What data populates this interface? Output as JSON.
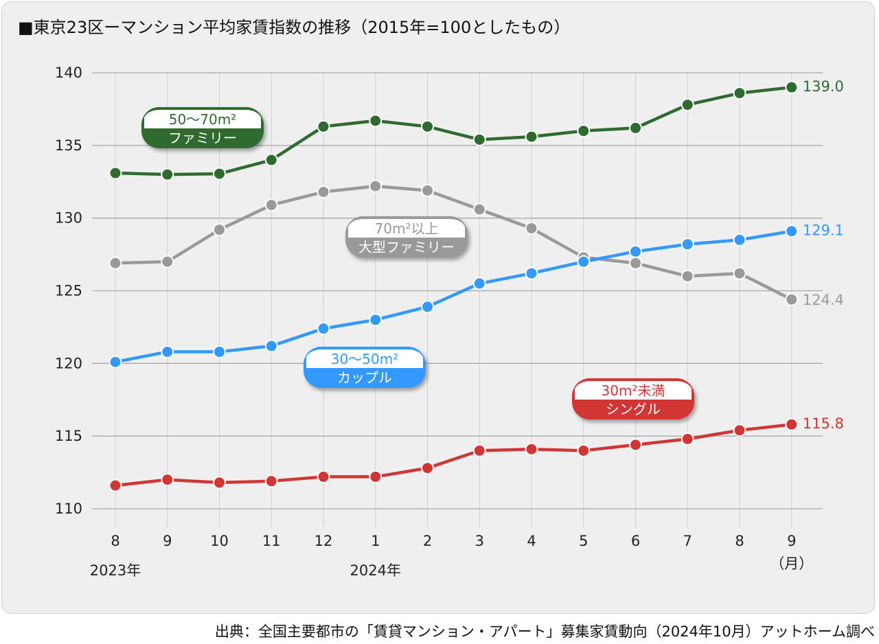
{
  "title": "■東京23区ーマンション平均家賃指数の推移（2015年=100としたもの）",
  "source": "出典：全国主要都市の「賃貸マンション・アパート」募集家賃動向（2024年10月）アットホーム調べ",
  "chart_data": {
    "type": "line",
    "categories": [
      "8",
      "9",
      "10",
      "11",
      "12",
      "1",
      "2",
      "3",
      "4",
      "5",
      "6",
      "7",
      "8",
      "9"
    ],
    "year_labels": [
      {
        "text": "2023年",
        "category_index": 0
      },
      {
        "text": "2024年",
        "category_index": 5
      }
    ],
    "x_unit_label": "（月）",
    "ylim": [
      110,
      140
    ],
    "yticks": [
      110,
      115,
      120,
      125,
      130,
      135,
      140
    ],
    "grid": true,
    "series": [
      {
        "name": "50〜70m²",
        "sub_label": "ファミリー",
        "color": "#2f6a2e",
        "values": [
          133.1,
          133.0,
          133.05,
          134.0,
          136.3,
          136.7,
          136.3,
          135.4,
          135.6,
          136.0,
          136.2,
          137.8,
          138.6,
          139.0
        ],
        "end_label": "139.0"
      },
      {
        "name": "70m²以上",
        "sub_label": "大型ファミリー",
        "color": "#999999",
        "values": [
          126.9,
          127.0,
          129.2,
          130.9,
          131.8,
          132.2,
          131.9,
          130.6,
          129.3,
          127.3,
          126.9,
          126.0,
          126.2,
          124.4
        ],
        "end_label": "124.4"
      },
      {
        "name": "30〜50m²",
        "sub_label": "カップル",
        "color": "#3399ff",
        "values": [
          120.1,
          120.8,
          120.8,
          121.2,
          122.4,
          123.0,
          123.9,
          125.5,
          126.2,
          127.0,
          127.7,
          128.2,
          128.5,
          129.1
        ],
        "end_label": "129.1"
      },
      {
        "name": "30m²未満",
        "sub_label": "シングル",
        "color": "#d13634",
        "values": [
          111.6,
          112.0,
          111.8,
          111.9,
          112.2,
          112.2,
          112.8,
          114.0,
          114.1,
          114.0,
          114.4,
          114.8,
          115.4,
          115.8
        ],
        "end_label": "115.8"
      }
    ]
  }
}
